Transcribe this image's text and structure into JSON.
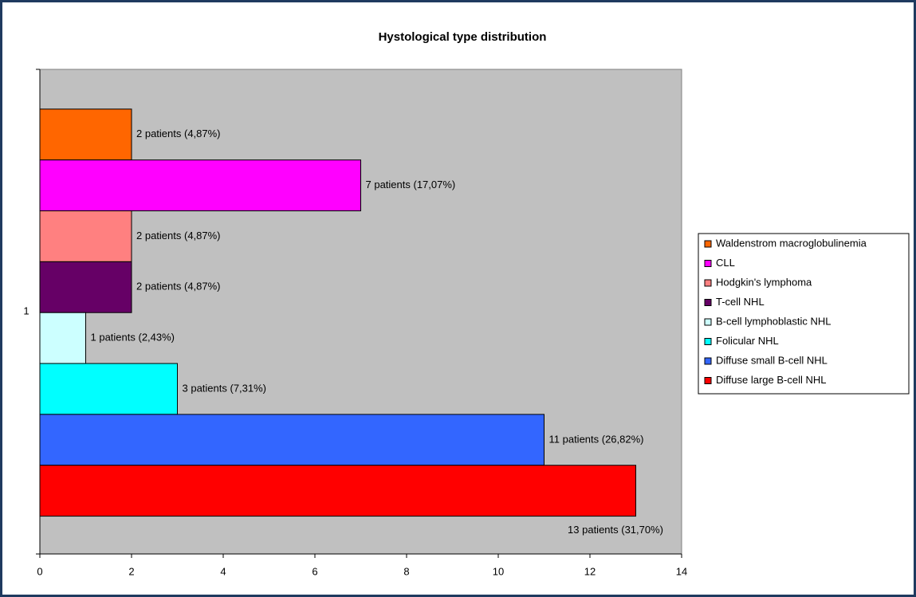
{
  "chart_data": {
    "type": "hbar",
    "title": "Hystological type distribution",
    "categories": [
      "1"
    ],
    "series": [
      {
        "name": "Waldenstrom macroglobulinemia",
        "color": "#ff6600",
        "values": [
          2
        ],
        "value_labels": [
          "2 patients (4,87%)"
        ]
      },
      {
        "name": "CLL",
        "color": "#ff00ff",
        "values": [
          7
        ],
        "value_labels": [
          "7 patients (17,07%)"
        ]
      },
      {
        "name": "Hodgkin's lymphoma",
        "color": "#ff8080",
        "values": [
          2
        ],
        "value_labels": [
          "2 patients (4,87%)"
        ]
      },
      {
        "name": "T-cell NHL",
        "color": "#660066",
        "values": [
          2
        ],
        "value_labels": [
          "2 patients (4,87%)"
        ]
      },
      {
        "name": "B-cell lymphoblastic NHL",
        "color": "#ccffff",
        "values": [
          1
        ],
        "value_labels": [
          "1 patients (2,43%)"
        ]
      },
      {
        "name": "Folicular NHL",
        "color": "#00ffff",
        "values": [
          3
        ],
        "value_labels": [
          "3 patients (7,31%)"
        ]
      },
      {
        "name": "Diffuse small B-cell NHL",
        "color": "#3366ff",
        "values": [
          11
        ],
        "value_labels": [
          "11 patients (26,82%)"
        ]
      },
      {
        "name": "Diffuse large B-cell NHL",
        "color": "#ff0000",
        "values": [
          13
        ],
        "value_labels": [
          "13 patients (31,70%)"
        ]
      }
    ],
    "xlim": [
      0,
      14
    ],
    "xticks": [
      0,
      2,
      4,
      6,
      8,
      10,
      12,
      14
    ],
    "legend": "right"
  }
}
